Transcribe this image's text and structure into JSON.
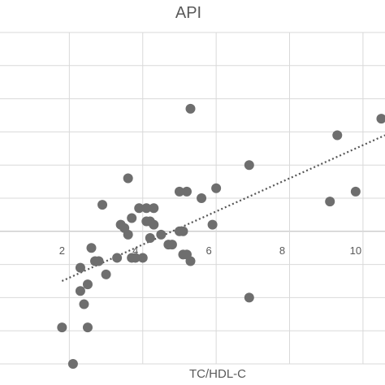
{
  "chart_data": {
    "type": "scatter",
    "title": "API",
    "xlabel": "TC/HDL-C",
    "ylabel": "",
    "x_ticks": [
      2,
      4,
      6,
      8,
      10
    ],
    "xlim": [
      0,
      10.6
    ],
    "ylim": [
      -4,
      6
    ],
    "y_grid_step": 1,
    "grid": true,
    "series": [
      {
        "points": [
          [
            1.8,
            -2.9
          ],
          [
            2.1,
            -4.0
          ],
          [
            2.3,
            -1.1
          ],
          [
            2.3,
            -1.8
          ],
          [
            2.4,
            -2.2
          ],
          [
            2.5,
            -1.6
          ],
          [
            2.5,
            -2.9
          ],
          [
            2.6,
            -0.5
          ],
          [
            2.7,
            -0.9
          ],
          [
            2.8,
            -0.9
          ],
          [
            2.9,
            0.8
          ],
          [
            3.0,
            -1.3
          ],
          [
            3.3,
            -0.8
          ],
          [
            3.4,
            0.2
          ],
          [
            3.5,
            0.1
          ],
          [
            3.6,
            -0.1
          ],
          [
            3.6,
            1.6
          ],
          [
            3.7,
            0.4
          ],
          [
            3.7,
            -0.8
          ],
          [
            3.8,
            -0.8
          ],
          [
            3.9,
            0.7
          ],
          [
            4.0,
            -0.8
          ],
          [
            4.1,
            0.7
          ],
          [
            4.1,
            0.3
          ],
          [
            4.2,
            -0.2
          ],
          [
            4.2,
            0.3
          ],
          [
            4.3,
            0.7
          ],
          [
            4.3,
            0.2
          ],
          [
            4.5,
            -0.1
          ],
          [
            4.7,
            -0.4
          ],
          [
            4.8,
            -0.4
          ],
          [
            5.0,
            0.0
          ],
          [
            5.0,
            1.2
          ],
          [
            5.1,
            -0.7
          ],
          [
            5.1,
            0.0
          ],
          [
            5.2,
            -0.7
          ],
          [
            5.2,
            1.2
          ],
          [
            5.3,
            -0.9
          ],
          [
            5.3,
            3.7
          ],
          [
            5.6,
            1.0
          ],
          [
            5.9,
            0.2
          ],
          [
            6.0,
            1.3
          ],
          [
            6.9,
            2.0
          ],
          [
            6.9,
            -2.0
          ],
          [
            9.1,
            0.9
          ],
          [
            9.3,
            2.9
          ],
          [
            9.8,
            1.2
          ],
          [
            10.5,
            3.4
          ]
        ]
      }
    ],
    "trendline": {
      "type": "linear",
      "x": [
        1.8,
        10.6
      ],
      "y": [
        -1.5,
        2.9
      ]
    }
  }
}
